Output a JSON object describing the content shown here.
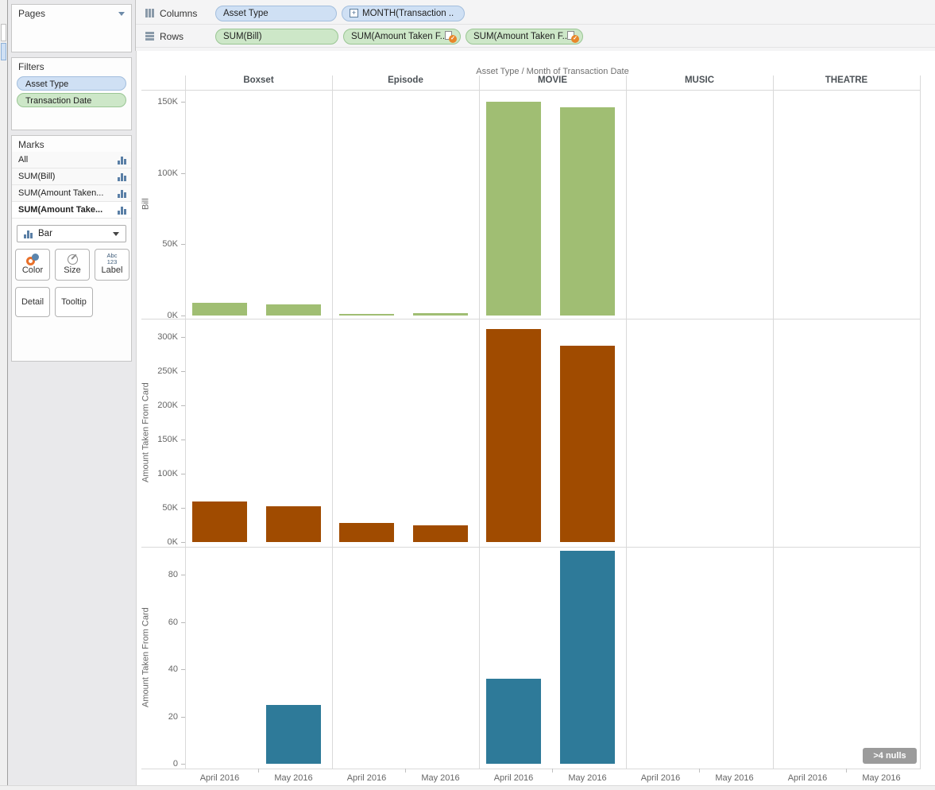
{
  "shelves": {
    "columns": {
      "label": "Columns",
      "pills": [
        {
          "text": "Asset Type"
        },
        {
          "text": "MONTH(Transaction ..",
          "expand_icon": "+"
        }
      ]
    },
    "rows": {
      "label": "Rows",
      "pills": [
        {
          "text": "SUM(Bill)"
        },
        {
          "text": "SUM(Amount Taken F..",
          "check_badge": "✓"
        },
        {
          "text": "SUM(Amount Taken F..",
          "check_badge": "✓"
        }
      ]
    }
  },
  "sidebar": {
    "pages": {
      "title": "Pages"
    },
    "filters": {
      "title": "Filters",
      "items": [
        {
          "label": "Asset Type",
          "color": "blue"
        },
        {
          "label": "Transaction Date",
          "color": "green"
        }
      ]
    },
    "marks": {
      "title": "Marks",
      "cards": [
        {
          "label": "All"
        },
        {
          "label": "SUM(Bill)"
        },
        {
          "label": "SUM(Amount Taken..."
        },
        {
          "label": "SUM(Amount Take...",
          "selected": true
        }
      ],
      "mark_type": "Bar",
      "buttons": [
        {
          "label": "Color"
        },
        {
          "label": "Size"
        },
        {
          "label": "Label"
        },
        {
          "label": "Detail"
        },
        {
          "label": "Tooltip"
        }
      ],
      "label_icon_line1": "Abc",
      "label_icon_line2": "123"
    }
  },
  "colors": {
    "dimension_pill": "#cfe0f4",
    "measure_pill": "#cde7c8",
    "bar_green": "#a0be73",
    "bar_brown": "#a04b00",
    "bar_blue": "#2e7a99",
    "nulls_badge_bg": "#9b9b9b"
  },
  "chart_data": {
    "type": "bar",
    "title": "Asset Type  /  Month of Transaction Date",
    "layout": "small multiples: 5 asset-type columns x 3 measure rows, shared month x-axis",
    "column_headers": [
      "Boxset",
      "Episode",
      "MOVIE",
      "MUSIC",
      "THEATRE"
    ],
    "x_categories": [
      "April 2016",
      "May 2016"
    ],
    "rows": [
      {
        "ylabel": "Bill",
        "measure": "SUM(Bill)",
        "bar_color": "#a0be73",
        "ylim": [
          0,
          160000
        ],
        "yticks": [
          {
            "value": 0,
            "label": "0K"
          },
          {
            "value": 50000,
            "label": "50K"
          },
          {
            "value": 100000,
            "label": "100K"
          },
          {
            "value": 150000,
            "label": "150K"
          }
        ],
        "series": [
          {
            "column": "Boxset",
            "values": [
              9000,
              8000
            ]
          },
          {
            "column": "Episode",
            "values": [
              1200,
              1800
            ]
          },
          {
            "column": "MOVIE",
            "values": [
              150000,
              146000
            ]
          },
          {
            "column": "MUSIC",
            "values": [
              null,
              null
            ]
          },
          {
            "column": "THEATRE",
            "values": [
              null,
              null
            ]
          }
        ]
      },
      {
        "ylabel": "Amount Taken From Card",
        "measure": "SUM(Amount Taken From Card)",
        "bar_color": "#a04b00",
        "ylim": [
          0,
          325000
        ],
        "yticks": [
          {
            "value": 0,
            "label": "0K"
          },
          {
            "value": 50000,
            "label": "50K"
          },
          {
            "value": 100000,
            "label": "100K"
          },
          {
            "value": 150000,
            "label": "150K"
          },
          {
            "value": 200000,
            "label": "200K"
          },
          {
            "value": 250000,
            "label": "250K"
          },
          {
            "value": 300000,
            "label": "300K"
          }
        ],
        "series": [
          {
            "column": "Boxset",
            "values": [
              59000,
              52000
            ]
          },
          {
            "column": "Episode",
            "values": [
              28000,
              24000
            ]
          },
          {
            "column": "MOVIE",
            "values": [
              312000,
              287000
            ]
          },
          {
            "column": "MUSIC",
            "values": [
              null,
              null
            ]
          },
          {
            "column": "THEATRE",
            "values": [
              null,
              null
            ]
          }
        ]
      },
      {
        "ylabel": "Amount Taken From Card",
        "measure": "SUM(Amount Taken From Card)",
        "bar_color": "#2e7a99",
        "ylim": [
          0,
          94
        ],
        "yticks": [
          {
            "value": 0,
            "label": "0"
          },
          {
            "value": 20,
            "label": "20"
          },
          {
            "value": 40,
            "label": "40"
          },
          {
            "value": 60,
            "label": "60"
          },
          {
            "value": 80,
            "label": "80"
          }
        ],
        "series": [
          {
            "column": "Boxset",
            "values": [
              null,
              25
            ]
          },
          {
            "column": "Episode",
            "values": [
              null,
              null
            ]
          },
          {
            "column": "MOVIE",
            "values": [
              36,
              90
            ]
          },
          {
            "column": "MUSIC",
            "values": [
              null,
              null
            ]
          },
          {
            "column": "THEATRE",
            "values": [
              null,
              null
            ]
          }
        ]
      }
    ],
    "nulls_badge": ">4 nulls"
  }
}
